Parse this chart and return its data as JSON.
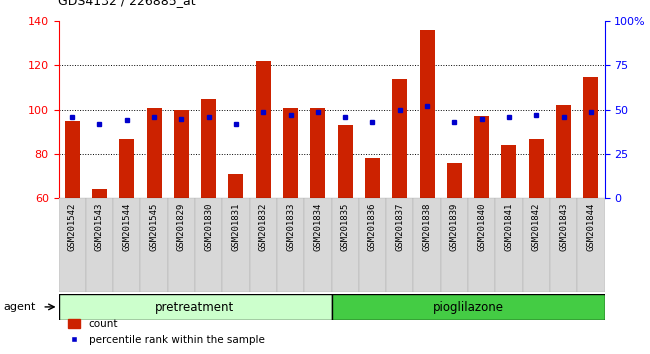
{
  "title": "GDS4132 / 226885_at",
  "samples": [
    "GSM201542",
    "GSM201543",
    "GSM201544",
    "GSM201545",
    "GSM201829",
    "GSM201830",
    "GSM201831",
    "GSM201832",
    "GSM201833",
    "GSM201834",
    "GSM201835",
    "GSM201836",
    "GSM201837",
    "GSM201838",
    "GSM201839",
    "GSM201840",
    "GSM201841",
    "GSM201842",
    "GSM201843",
    "GSM201844"
  ],
  "count_values": [
    95,
    64,
    87,
    101,
    100,
    105,
    71,
    122,
    101,
    101,
    93,
    78,
    114,
    136,
    76,
    97,
    84,
    87,
    102,
    115
  ],
  "percentile_values": [
    46,
    42,
    44,
    46,
    45,
    46,
    42,
    49,
    47,
    49,
    46,
    43,
    50,
    52,
    43,
    45,
    46,
    47,
    46,
    49
  ],
  "pretreatment_color": "#ccffcc",
  "pioglilazone_color": "#44cc44",
  "bar_color": "#cc2200",
  "dot_color": "#0000cc",
  "ylim_left": [
    60,
    140
  ],
  "ylim_right": [
    0,
    100
  ],
  "yticks_left": [
    60,
    80,
    100,
    120,
    140
  ],
  "yticks_right": [
    0,
    25,
    50,
    75,
    100
  ],
  "ytick_labels_right": [
    "0",
    "25",
    "50",
    "75",
    "100%"
  ],
  "bar_width": 0.55
}
